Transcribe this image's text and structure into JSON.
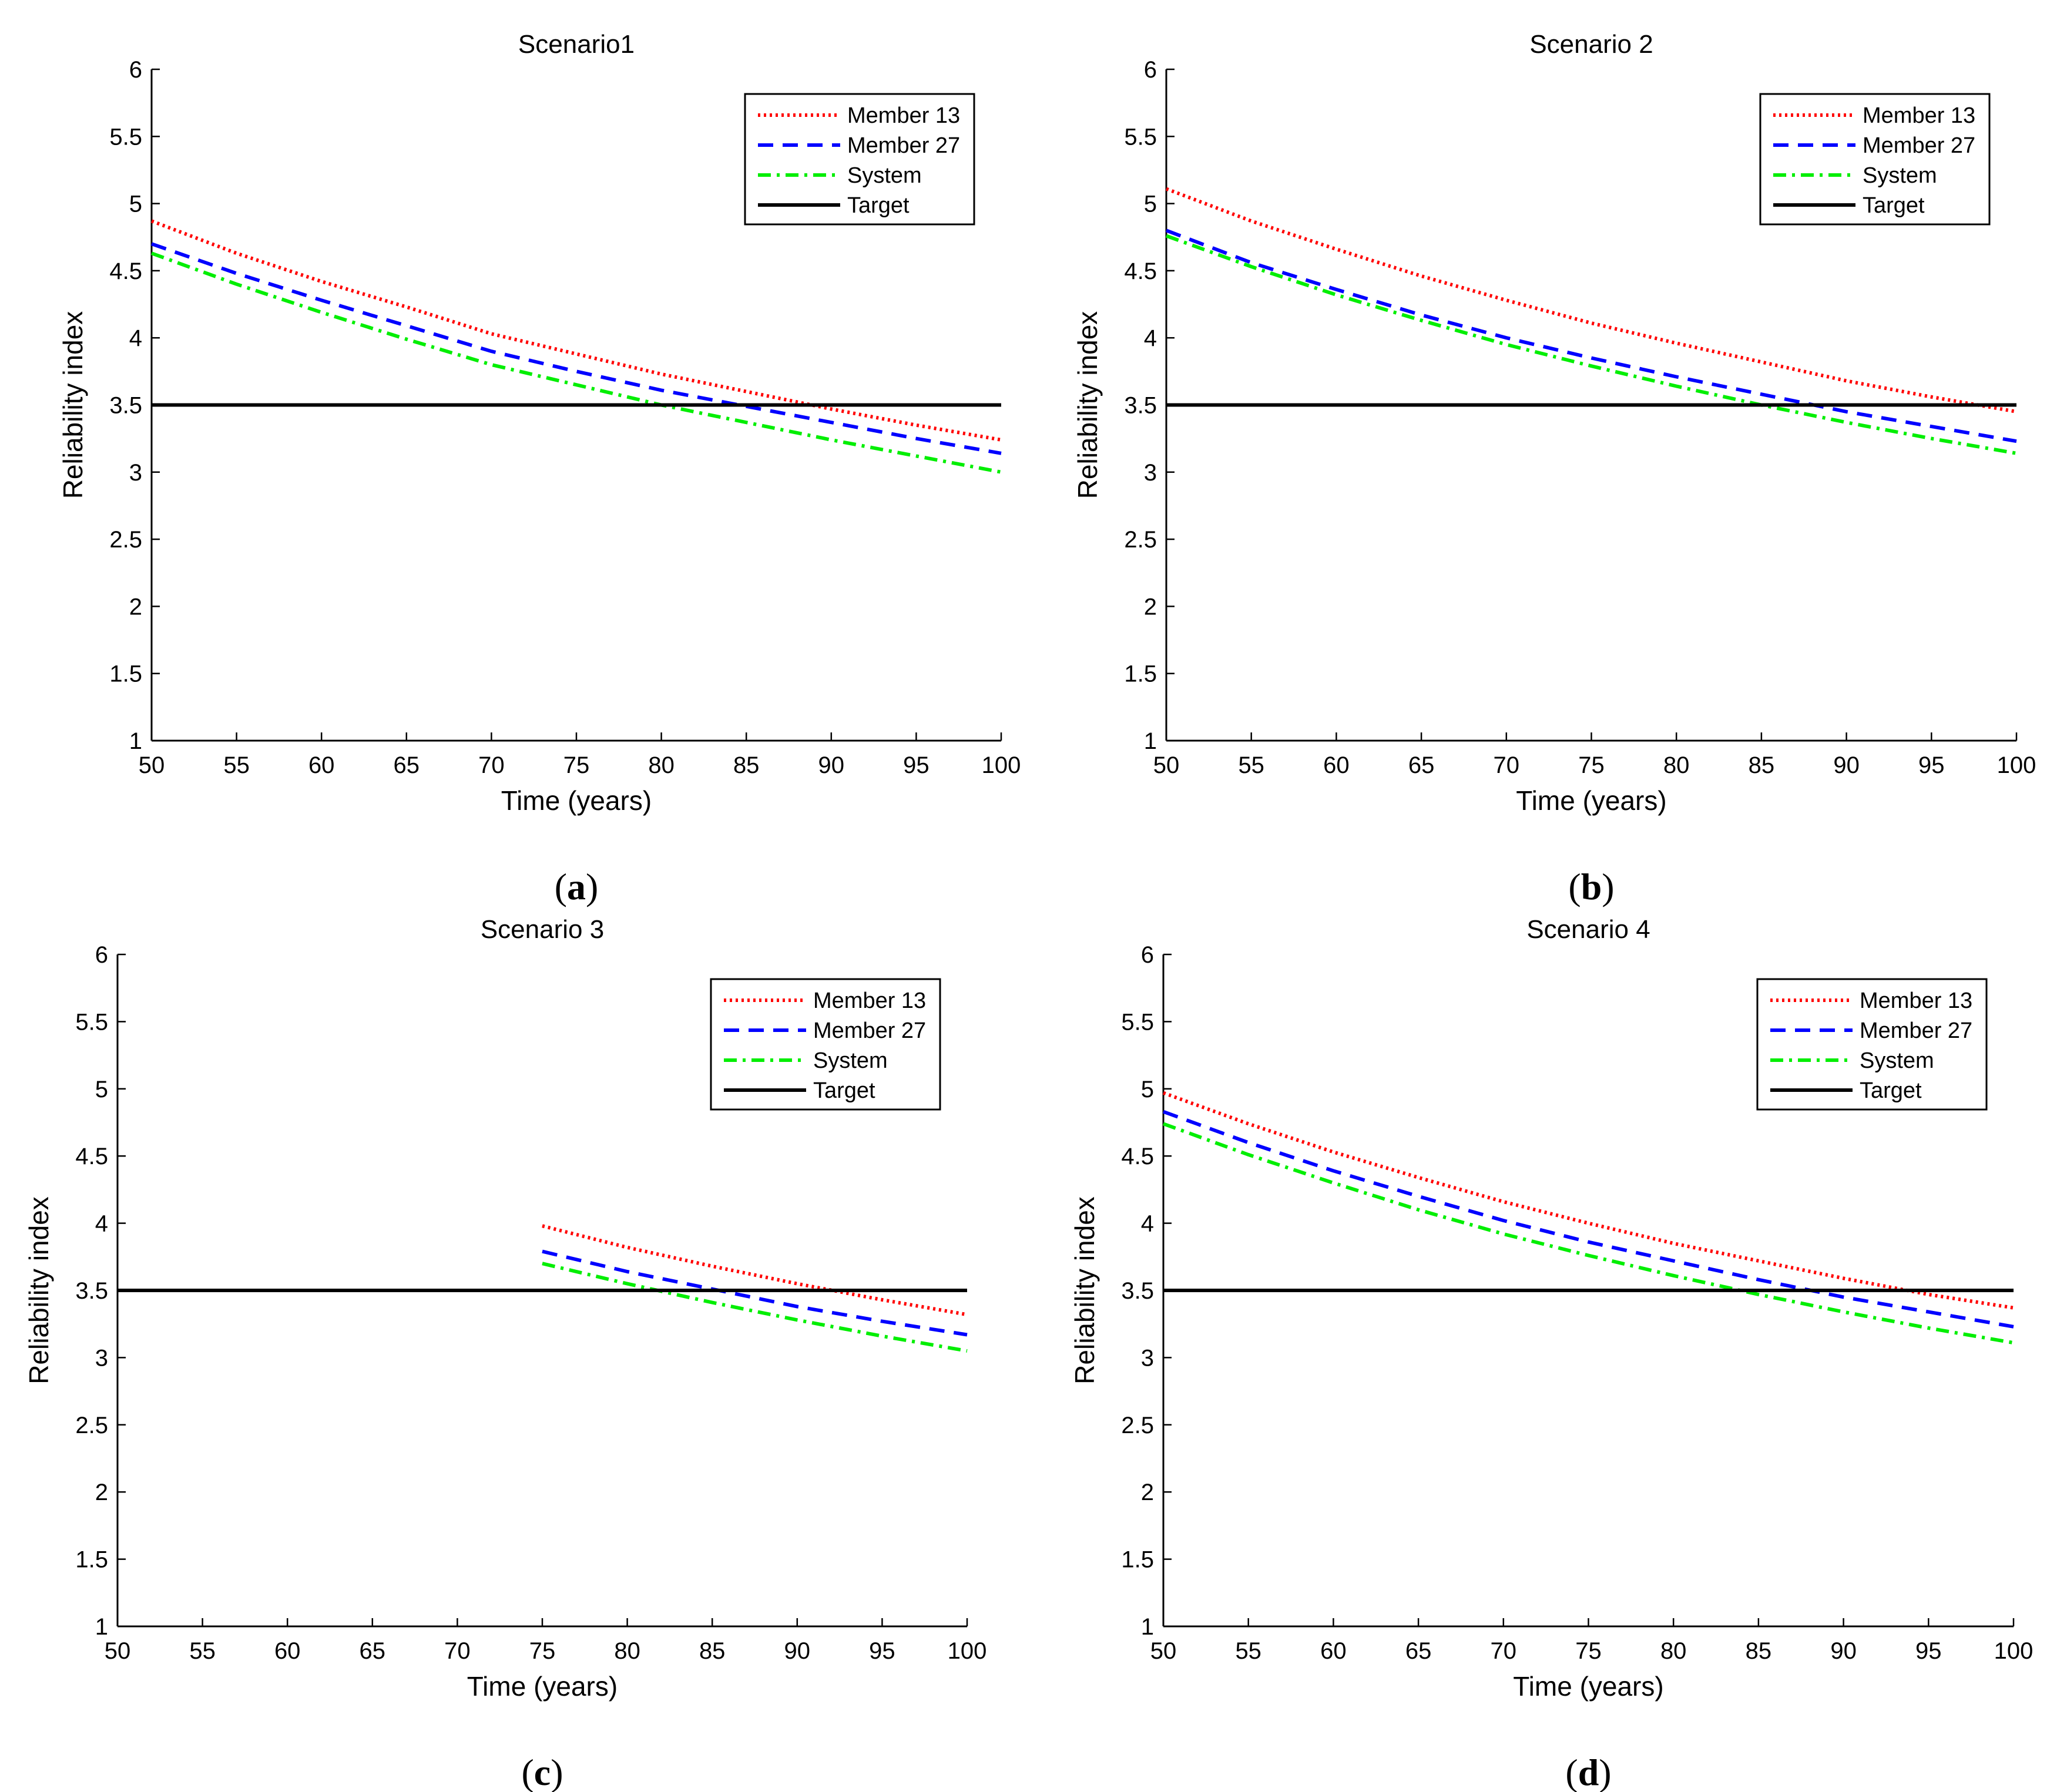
{
  "chart_data": [
    {
      "type": "line",
      "panel": "(a)",
      "caption_letter": "a",
      "title": "Scenario1",
      "xlabel": "Time (years)",
      "ylabel": "Reliability index",
      "xlim": [
        50,
        100
      ],
      "ylim": [
        1,
        6
      ],
      "xticks": [
        "50",
        "55",
        "60",
        "65",
        "70",
        "75",
        "80",
        "85",
        "90",
        "95",
        "100"
      ],
      "yticks": [
        "1",
        "1.5",
        "2",
        "2.5",
        "3",
        "3.5",
        "4",
        "4.5",
        "5",
        "5.5",
        "6"
      ],
      "grid": false,
      "legend_position": "top-right",
      "series": [
        {
          "name": "Member 13",
          "style": "dotted",
          "color": "#ff0000",
          "x": [
            50,
            55,
            60,
            65,
            70,
            75,
            80,
            85,
            90,
            95,
            100
          ],
          "y": [
            4.87,
            4.63,
            4.42,
            4.23,
            4.03,
            3.88,
            3.73,
            3.6,
            3.47,
            3.35,
            3.24
          ]
        },
        {
          "name": "Member 27",
          "style": "dashed",
          "color": "#0000ff",
          "x": [
            50,
            55,
            60,
            65,
            70,
            75,
            80,
            85,
            90,
            95,
            100
          ],
          "y": [
            4.7,
            4.48,
            4.28,
            4.09,
            3.9,
            3.75,
            3.61,
            3.49,
            3.37,
            3.25,
            3.14
          ]
        },
        {
          "name": "System",
          "style": "dashdot",
          "color": "#00ee00",
          "x": [
            50,
            55,
            60,
            65,
            70,
            75,
            80,
            85,
            90,
            95,
            100
          ],
          "y": [
            4.63,
            4.4,
            4.19,
            3.99,
            3.8,
            3.65,
            3.5,
            3.37,
            3.24,
            3.12,
            3.0
          ]
        },
        {
          "name": "Target",
          "style": "solid",
          "color": "#000000",
          "x": [
            50,
            100
          ],
          "y": [
            3.5,
            3.5
          ]
        }
      ]
    },
    {
      "type": "line",
      "panel": "(b)",
      "caption_letter": "b",
      "title": "Scenario 2",
      "xlabel": "Time (years)",
      "ylabel": "Reliability index",
      "xlim": [
        50,
        100
      ],
      "ylim": [
        1,
        6
      ],
      "xticks": [
        "50",
        "55",
        "60",
        "65",
        "70",
        "75",
        "80",
        "85",
        "90",
        "95",
        "100"
      ],
      "yticks": [
        "1",
        "1.5",
        "2",
        "2.5",
        "3",
        "3.5",
        "4",
        "4.5",
        "5",
        "5.5",
        "6"
      ],
      "grid": false,
      "legend_position": "top-right",
      "series": [
        {
          "name": "Member 13",
          "style": "dotted",
          "color": "#ff0000",
          "x": [
            50,
            55,
            60,
            65,
            70,
            75,
            80,
            85,
            90,
            95,
            100
          ],
          "y": [
            5.11,
            4.87,
            4.66,
            4.46,
            4.28,
            4.11,
            3.96,
            3.82,
            3.68,
            3.56,
            3.45
          ]
        },
        {
          "name": "Member 27",
          "style": "dashed",
          "color": "#0000ff",
          "x": [
            50,
            55,
            60,
            65,
            70,
            75,
            80,
            85,
            90,
            95,
            100
          ],
          "y": [
            4.8,
            4.56,
            4.36,
            4.17,
            4.0,
            3.85,
            3.71,
            3.58,
            3.45,
            3.34,
            3.23
          ]
        },
        {
          "name": "System",
          "style": "dashdot",
          "color": "#00ee00",
          "x": [
            50,
            55,
            60,
            65,
            70,
            75,
            80,
            85,
            90,
            95,
            100
          ],
          "y": [
            4.76,
            4.53,
            4.32,
            4.13,
            3.95,
            3.79,
            3.64,
            3.5,
            3.37,
            3.25,
            3.14
          ]
        },
        {
          "name": "Target",
          "style": "solid",
          "color": "#000000",
          "x": [
            50,
            100
          ],
          "y": [
            3.5,
            3.5
          ]
        }
      ]
    },
    {
      "type": "line",
      "panel": "(c)",
      "caption_letter": "c",
      "title": "Scenario 3",
      "xlabel": "Time (years)",
      "ylabel": "Reliability index",
      "xlim": [
        50,
        100
      ],
      "ylim": [
        1,
        6
      ],
      "xticks": [
        "50",
        "55",
        "60",
        "65",
        "70",
        "75",
        "80",
        "85",
        "90",
        "95",
        "100"
      ],
      "yticks": [
        "1",
        "1.5",
        "2",
        "2.5",
        "3",
        "3.5",
        "4",
        "4.5",
        "5",
        "5.5",
        "6"
      ],
      "grid": false,
      "legend_position": "top-right",
      "series": [
        {
          "name": "Member 13",
          "style": "dotted",
          "color": "#ff0000",
          "x": [
            75,
            80,
            85,
            90,
            95,
            100
          ],
          "y": [
            3.98,
            3.82,
            3.68,
            3.55,
            3.43,
            3.32
          ]
        },
        {
          "name": "Member 27",
          "style": "dashed",
          "color": "#0000ff",
          "x": [
            75,
            80,
            85,
            90,
            95,
            100
          ],
          "y": [
            3.79,
            3.64,
            3.51,
            3.38,
            3.27,
            3.17
          ]
        },
        {
          "name": "System",
          "style": "dashdot",
          "color": "#00ee00",
          "x": [
            75,
            80,
            85,
            90,
            95,
            100
          ],
          "y": [
            3.7,
            3.55,
            3.41,
            3.28,
            3.16,
            3.05
          ]
        },
        {
          "name": "Target",
          "style": "solid",
          "color": "#000000",
          "x": [
            50,
            100
          ],
          "y": [
            3.5,
            3.5
          ]
        }
      ]
    },
    {
      "type": "line",
      "panel": "(d)",
      "caption_letter": "d",
      "title": "Scenario 4",
      "xlabel": "Time (years)",
      "ylabel": "Reliability index",
      "xlim": [
        50,
        100
      ],
      "ylim": [
        1,
        6
      ],
      "xticks": [
        "50",
        "55",
        "60",
        "65",
        "70",
        "75",
        "80",
        "85",
        "90",
        "95",
        "100"
      ],
      "yticks": [
        "1",
        "1.5",
        "2",
        "2.5",
        "3",
        "3.5",
        "4",
        "4.5",
        "5",
        "5.5",
        "6"
      ],
      "grid": false,
      "legend_position": "top-right",
      "series": [
        {
          "name": "Member 13",
          "style": "dotted",
          "color": "#ff0000",
          "x": [
            50,
            55,
            60,
            65,
            70,
            75,
            80,
            85,
            90,
            95,
            100
          ],
          "y": [
            4.97,
            4.74,
            4.53,
            4.34,
            4.16,
            4.0,
            3.85,
            3.72,
            3.59,
            3.47,
            3.37
          ]
        },
        {
          "name": "Member 27",
          "style": "dashed",
          "color": "#0000ff",
          "x": [
            50,
            55,
            60,
            65,
            70,
            75,
            80,
            85,
            90,
            95,
            100
          ],
          "y": [
            4.83,
            4.6,
            4.39,
            4.2,
            4.02,
            3.86,
            3.72,
            3.58,
            3.45,
            3.34,
            3.23
          ]
        },
        {
          "name": "System",
          "style": "dashdot",
          "color": "#00ee00",
          "x": [
            50,
            55,
            60,
            65,
            70,
            75,
            80,
            85,
            90,
            95,
            100
          ],
          "y": [
            4.74,
            4.51,
            4.3,
            4.1,
            3.92,
            3.76,
            3.61,
            3.47,
            3.34,
            3.22,
            3.11
          ]
        },
        {
          "name": "Target",
          "style": "solid",
          "color": "#000000",
          "x": [
            50,
            100
          ],
          "y": [
            3.5,
            3.5
          ]
        }
      ]
    }
  ]
}
